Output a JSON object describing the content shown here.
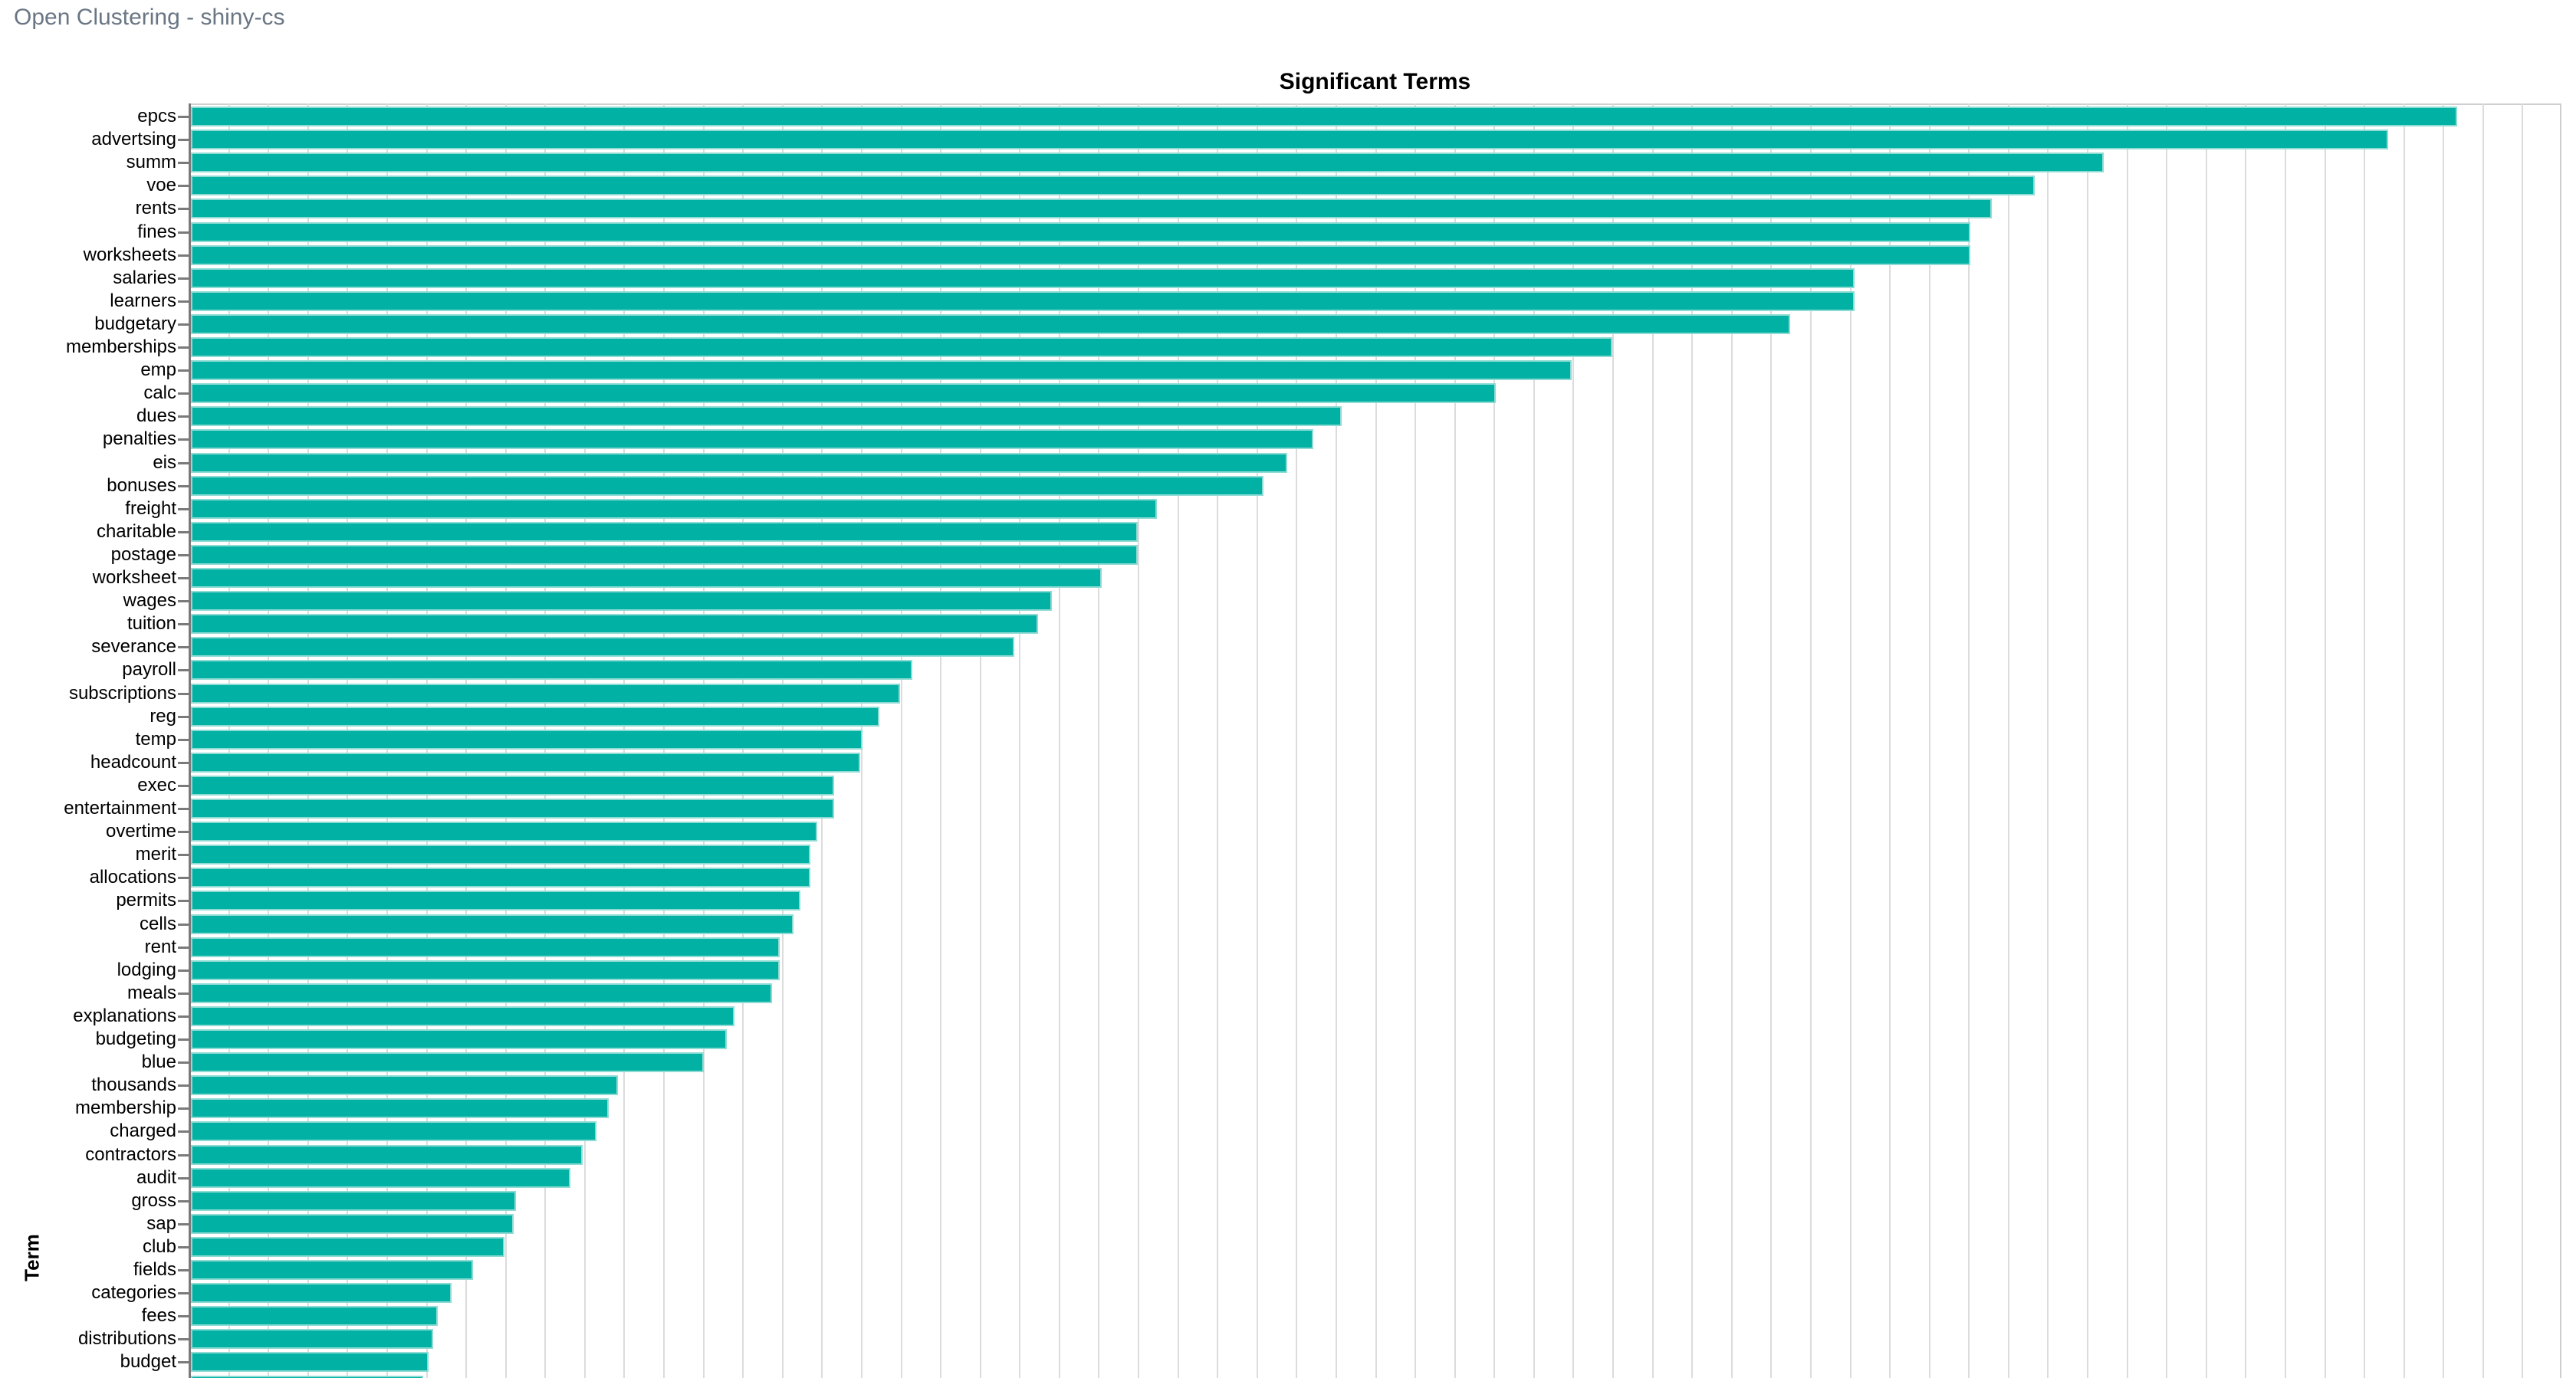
{
  "header": {
    "title": "Open Clustering - shiny-cs"
  },
  "chart_data": {
    "type": "bar",
    "orientation": "horizontal",
    "title": "Significant Terms",
    "xlabel": "",
    "ylabel": "Term",
    "legend": "none",
    "grid": "vertical-gridlines-on",
    "gridline_intervals": 60,
    "x_axis_tick_labels_visible": false,
    "values_unit": "percent_of_visible_axis_width",
    "categories": [
      "epcs",
      "advertsing",
      "summ",
      "voe",
      "rents",
      "fines",
      "worksheets",
      "salaries",
      "learners",
      "budgetary",
      "memberships",
      "emp",
      "calc",
      "dues",
      "penalties",
      "eis",
      "bonuses",
      "freight",
      "charitable",
      "postage",
      "worksheet",
      "wages",
      "tuition",
      "severance",
      "payroll",
      "subscriptions",
      "reg",
      "temp",
      "headcount",
      "exec",
      "entertainment",
      "overtime",
      "merit",
      "allocations",
      "permits",
      "cells",
      "rent",
      "lodging",
      "meals",
      "explanations",
      "budgeting",
      "blue",
      "thousands",
      "membership",
      "charged",
      "contractors",
      "audit",
      "gross",
      "sap",
      "club",
      "fields",
      "categories",
      "fees",
      "distributions",
      "budget",
      ""
    ],
    "values": [
      95.5,
      92.6,
      80.6,
      77.7,
      75.9,
      75.0,
      75.0,
      70.1,
      70.1,
      67.4,
      59.9,
      58.2,
      55.0,
      48.5,
      47.3,
      46.2,
      45.2,
      40.7,
      39.9,
      39.9,
      38.4,
      36.3,
      35.7,
      34.7,
      30.4,
      29.9,
      29.0,
      28.3,
      28.2,
      27.1,
      27.1,
      26.4,
      26.1,
      26.1,
      25.7,
      25.4,
      24.8,
      24.8,
      24.5,
      22.9,
      22.6,
      21.6,
      18.0,
      17.6,
      17.1,
      16.5,
      16.0,
      13.7,
      13.6,
      13.2,
      11.9,
      11.0,
      10.4,
      10.2,
      10.0,
      9.8
    ],
    "colors": {
      "bar": "#00b1a4",
      "bar_edge": "#8edbd4",
      "gridline": "#dcdcdc",
      "axis_spine": "#7a7a7a",
      "frame_spine": "#cfcfcf",
      "title_text": "#000000",
      "tick_label_text": "#000000",
      "header_text": "#6a7684"
    }
  }
}
